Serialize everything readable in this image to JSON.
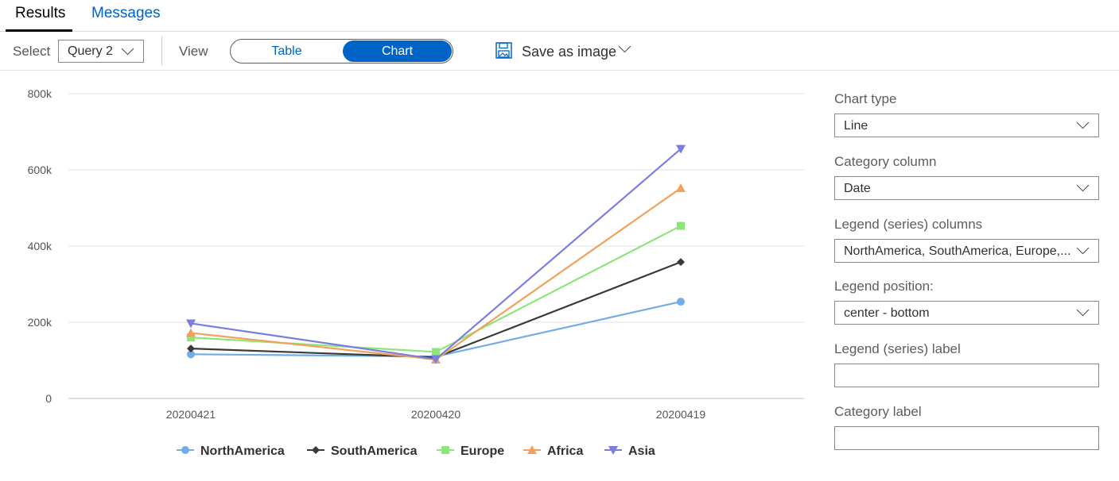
{
  "tabs": {
    "results": "Results",
    "messages": "Messages"
  },
  "toolbar": {
    "select_label": "Select",
    "query_value": "Query 2",
    "view_label": "View",
    "view_table": "Table",
    "view_chart": "Chart",
    "save_label": "Save as image"
  },
  "panel": {
    "chart_type_label": "Chart type",
    "chart_type_value": "Line",
    "category_column_label": "Category column",
    "category_column_value": "Date",
    "legend_columns_label": "Legend (series) columns",
    "legend_columns_value": "NorthAmerica, SouthAmerica, Europe,...",
    "legend_position_label": "Legend position:",
    "legend_position_value": "center - bottom",
    "legend_label_label": "Legend (series) label",
    "legend_label_value": "",
    "category_label_label": "Category label",
    "category_label_value": ""
  },
  "colors": {
    "accent": "#0063c7",
    "NorthAmerica": "#73ade8",
    "SouthAmerica": "#3a3a3a",
    "Europe": "#8ee67a",
    "Africa": "#f2a15a",
    "Asia": "#7b7ee0"
  },
  "icons": {
    "save": "save-image-icon",
    "dropdown": "chevron-down-icon"
  },
  "chart_data": {
    "type": "line",
    "categories": [
      "20200421",
      "20200420",
      "20200419"
    ],
    "ylim": [
      0,
      800000
    ],
    "yticks": [
      0,
      200000,
      400000,
      600000,
      800000
    ],
    "ytick_labels": [
      "0",
      "200k",
      "400k",
      "600k",
      "800k"
    ],
    "grid": true,
    "legend_position": "bottom-center",
    "title": "",
    "xlabel": "",
    "ylabel": "",
    "series": [
      {
        "name": "NorthAmerica",
        "marker": "circle",
        "values": [
          116000,
          110000,
          254000
        ]
      },
      {
        "name": "SouthAmerica",
        "marker": "diamond",
        "values": [
          131000,
          108000,
          358000
        ]
      },
      {
        "name": "Europe",
        "marker": "square",
        "values": [
          160000,
          122000,
          453000
        ]
      },
      {
        "name": "Africa",
        "marker": "triangle-up",
        "values": [
          172000,
          102000,
          552000
        ]
      },
      {
        "name": "Asia",
        "marker": "triangle-down",
        "values": [
          197000,
          103000,
          655000
        ]
      }
    ]
  }
}
